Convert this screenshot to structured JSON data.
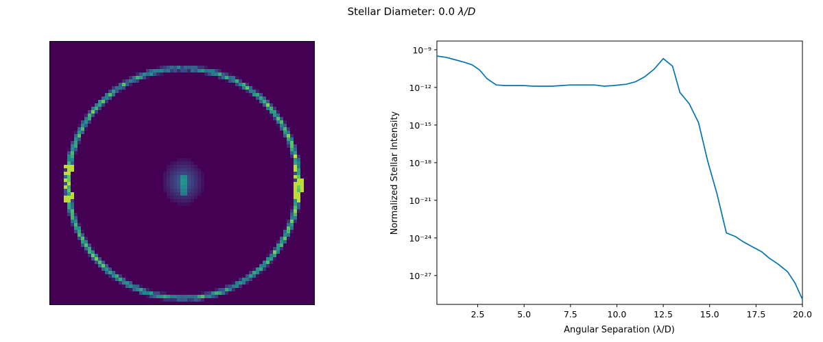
{
  "figure": {
    "title_prefix": "Stellar Diameter: 0.0 ",
    "title_unit": "λ/D"
  },
  "image_panel": {
    "colormap": "viridis",
    "ring_color_peak": "#fde725",
    "ring_color_mid": "#21918c",
    "background_color": "#440154"
  },
  "chart_data": {
    "type": "line",
    "xlabel": "Angular Separation (λ/D)",
    "ylabel": "Normalized Stellar Intensity",
    "xlim": [
      0.3,
      20.0
    ],
    "ylog": true,
    "ylim_exp": [
      -29.3,
      -8.3
    ],
    "x_ticks": [
      2.5,
      5.0,
      7.5,
      10.0,
      12.5,
      15.0,
      17.5,
      20.0
    ],
    "x_tick_labels": [
      "2.5",
      "5.0",
      "7.5",
      "10.0",
      "12.5",
      "15.0",
      "17.5",
      "20.0"
    ],
    "y_tick_exponents": [
      -9,
      -12,
      -15,
      -18,
      -21,
      -24,
      -27
    ],
    "y_tick_labels": [
      "10⁻⁹",
      "10⁻¹²",
      "10⁻¹⁵",
      "10⁻¹⁸",
      "10⁻²¹",
      "10⁻²⁴",
      "10⁻²⁷"
    ],
    "line_color": "#0072b2",
    "grid": false,
    "series": [
      {
        "x": [
          0.3,
          0.8,
          1.3,
          1.8,
          2.2,
          2.6,
          3.0,
          3.5,
          4.0,
          5.0,
          5.5,
          6.5,
          7.0,
          7.5,
          8.3,
          8.8,
          9.3,
          9.8,
          10.5,
          11.0,
          11.5,
          12.0,
          12.5,
          13.0,
          13.4,
          13.9,
          14.4,
          14.9,
          15.4,
          15.9,
          16.4,
          16.8,
          17.3,
          17.8,
          18.2,
          18.7,
          19.2,
          19.6,
          20.0
        ],
        "y_exp": [
          -9.5,
          -9.6,
          -9.8,
          -10.0,
          -10.2,
          -10.6,
          -11.3,
          -11.8,
          -11.85,
          -11.85,
          -11.9,
          -11.9,
          -11.85,
          -11.8,
          -11.8,
          -11.8,
          -11.9,
          -11.85,
          -11.75,
          -11.55,
          -11.15,
          -10.55,
          -9.7,
          -10.3,
          -12.4,
          -13.3,
          -14.8,
          -17.9,
          -20.5,
          -23.6,
          -23.9,
          -24.3,
          -24.7,
          -25.1,
          -25.6,
          -26.1,
          -26.7,
          -27.6,
          -28.9
        ]
      }
    ]
  }
}
